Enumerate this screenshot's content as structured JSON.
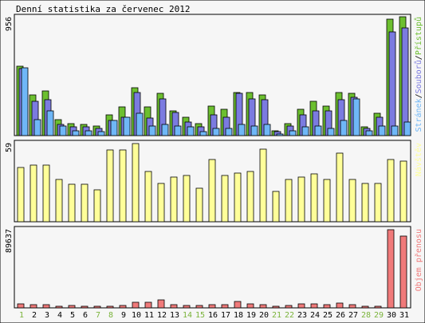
{
  "title": "Denní statistika za červenec 2012",
  "colors": {
    "background": "#f6f6f6",
    "frame": "#000000",
    "pristupu": "#6cbf2f",
    "souboru": "#7b7be0",
    "stranek": "#6fb7f7",
    "navstev": "#ffff99",
    "objem": "#f07a7a",
    "weekend_label": "#7ab33a",
    "weekday_label": "#000000"
  },
  "chart_data": [
    {
      "type": "bar",
      "panel": "hits",
      "max_label": "956",
      "legend": [
        {
          "text": "Stránek",
          "color": "#6fb7f7"
        },
        {
          "text": "/",
          "color": "#000000"
        },
        {
          "text": "Souborů",
          "color": "#7b7be0"
        },
        {
          "text": "/",
          "color": "#000000"
        },
        {
          "text": "Přístupů",
          "color": "#6cbf2f"
        }
      ],
      "ylim": [
        0,
        956
      ],
      "categories": [
        "1",
        "2",
        "3",
        "4",
        "5",
        "6",
        "7",
        "8",
        "9",
        "10",
        "11",
        "12",
        "13",
        "14",
        "15",
        "16",
        "17",
        "18",
        "19",
        "20",
        "21",
        "22",
        "23",
        "24",
        "25",
        "26",
        "27",
        "28",
        "29",
        "30",
        "31"
      ],
      "series": [
        {
          "key": "pristupu",
          "values": [
            565,
            330,
            360,
            130,
            100,
            90,
            80,
            170,
            230,
            390,
            230,
            340,
            200,
            150,
            100,
            240,
            210,
            350,
            350,
            330,
            40,
            100,
            210,
            280,
            240,
            350,
            340,
            70,
            180,
            940,
            960
          ]
        },
        {
          "key": "souboru",
          "values": [
            545,
            280,
            290,
            90,
            70,
            70,
            60,
            120,
            150,
            350,
            140,
            300,
            190,
            110,
            70,
            170,
            150,
            340,
            300,
            290,
            30,
            80,
            170,
            200,
            200,
            290,
            310,
            60,
            150,
            840,
            870
          ]
        },
        {
          "key": "stranek",
          "values": [
            550,
            130,
            200,
            80,
            40,
            40,
            30,
            120,
            150,
            180,
            80,
            90,
            80,
            70,
            30,
            60,
            60,
            90,
            80,
            90,
            15,
            40,
            70,
            80,
            60,
            120,
            300,
            40,
            80,
            80,
            110
          ]
        }
      ]
    },
    {
      "type": "bar",
      "panel": "visits",
      "max_label": "59",
      "legend": [
        {
          "text": "Návštěv",
          "color": "#ffff99"
        }
      ],
      "ylim": [
        0,
        59
      ],
      "categories": [
        "1",
        "2",
        "3",
        "4",
        "5",
        "6",
        "7",
        "8",
        "9",
        "10",
        "11",
        "12",
        "13",
        "14",
        "15",
        "16",
        "17",
        "18",
        "19",
        "20",
        "21",
        "22",
        "23",
        "24",
        "25",
        "26",
        "27",
        "28",
        "29",
        "30",
        "31"
      ],
      "series": [
        {
          "key": "navstev",
          "values": [
            41,
            43,
            43,
            32,
            28,
            28,
            24,
            54,
            54,
            59,
            38,
            29,
            34,
            35,
            25,
            47,
            35,
            37,
            38,
            55,
            23,
            32,
            34,
            36,
            32,
            52,
            32,
            29,
            29,
            47,
            46
          ]
        }
      ]
    },
    {
      "type": "bar",
      "panel": "volume",
      "max_label": "89637",
      "legend": [
        {
          "text": "Objem přenosu",
          "color": "#f07a7a"
        }
      ],
      "ylim": [
        0,
        89637
      ],
      "categories": [
        "1",
        "2",
        "3",
        "4",
        "5",
        "6",
        "7",
        "8",
        "9",
        "10",
        "11",
        "12",
        "13",
        "14",
        "15",
        "16",
        "17",
        "18",
        "19",
        "20",
        "21",
        "22",
        "23",
        "24",
        "25",
        "26",
        "27",
        "28",
        "29",
        "30",
        "31"
      ],
      "series": [
        {
          "key": "objem",
          "values": [
            5000,
            3500,
            3500,
            2000,
            2500,
            2000,
            2000,
            2000,
            3000,
            6000,
            6500,
            9000,
            3500,
            2500,
            2500,
            3500,
            3500,
            7000,
            4500,
            3500,
            2000,
            3000,
            4500,
            4500,
            3500,
            5500,
            3500,
            2000,
            2000,
            89637,
            82000
          ]
        }
      ]
    }
  ],
  "x_labels": [
    {
      "text": "1",
      "weekend": true
    },
    {
      "text": "2",
      "weekend": false
    },
    {
      "text": "3",
      "weekend": false
    },
    {
      "text": "4",
      "weekend": false
    },
    {
      "text": "5",
      "weekend": false
    },
    {
      "text": "6",
      "weekend": false
    },
    {
      "text": "7",
      "weekend": true
    },
    {
      "text": "8",
      "weekend": true
    },
    {
      "text": "9",
      "weekend": false
    },
    {
      "text": "10",
      "weekend": false
    },
    {
      "text": "11",
      "weekend": false
    },
    {
      "text": "12",
      "weekend": false
    },
    {
      "text": "13",
      "weekend": false
    },
    {
      "text": "14",
      "weekend": true
    },
    {
      "text": "15",
      "weekend": true
    },
    {
      "text": "16",
      "weekend": false
    },
    {
      "text": "17",
      "weekend": false
    },
    {
      "text": "18",
      "weekend": false
    },
    {
      "text": "19",
      "weekend": false
    },
    {
      "text": "20",
      "weekend": false
    },
    {
      "text": "21",
      "weekend": true
    },
    {
      "text": "22",
      "weekend": true
    },
    {
      "text": "23",
      "weekend": false
    },
    {
      "text": "24",
      "weekend": false
    },
    {
      "text": "25",
      "weekend": false
    },
    {
      "text": "26",
      "weekend": false
    },
    {
      "text": "27",
      "weekend": false
    },
    {
      "text": "28",
      "weekend": true
    },
    {
      "text": "29",
      "weekend": true
    },
    {
      "text": "30",
      "weekend": false
    },
    {
      "text": "31",
      "weekend": false
    }
  ]
}
